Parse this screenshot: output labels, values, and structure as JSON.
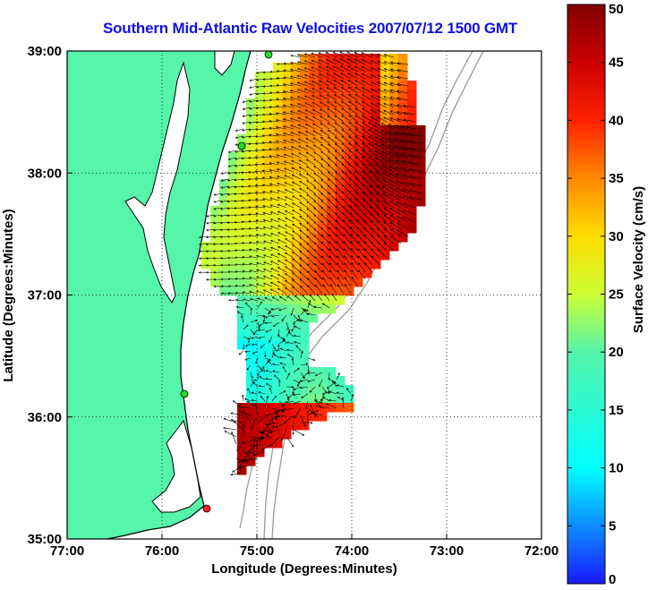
{
  "title": "Southern Mid-Atlantic Raw Velocities 2007/07/12 1500 GMT",
  "map": {
    "xlabel": "Longitude (Degrees:Minutes)",
    "ylabel": "Latitude (Degrees:Minutes)",
    "lon_range": [
      -77,
      -72
    ],
    "lat_range": [
      35,
      39
    ],
    "x_ticks": [
      {
        "value": -77,
        "label": "77:00"
      },
      {
        "value": -76,
        "label": "76:00"
      },
      {
        "value": -75,
        "label": "75:00"
      },
      {
        "value": -74,
        "label": "74:00"
      },
      {
        "value": -73,
        "label": "73:00"
      },
      {
        "value": -72,
        "label": "72:00"
      }
    ],
    "y_ticks": [
      {
        "value": 35,
        "label": "35:00"
      },
      {
        "value": 36,
        "label": "36:00"
      },
      {
        "value": 37,
        "label": "37:00"
      },
      {
        "value": 38,
        "label": "38:00"
      },
      {
        "value": 39,
        "label": "39:00"
      }
    ],
    "grid": "dotted",
    "land_color": "#55f5aa",
    "station_color_green": "#22dd22",
    "station_color_red": "#ff2222"
  },
  "colorbar": {
    "label": "Surface Velocity (cm/s)",
    "range": [
      0,
      50
    ],
    "units": "cm/s",
    "ticks": [
      {
        "value": 0,
        "label": "0"
      },
      {
        "value": 5,
        "label": "5"
      },
      {
        "value": 10,
        "label": "10"
      },
      {
        "value": 15,
        "label": "15"
      },
      {
        "value": 20,
        "label": "20"
      },
      {
        "value": 25,
        "label": "25"
      },
      {
        "value": 30,
        "label": "30"
      },
      {
        "value": 35,
        "label": "35"
      },
      {
        "value": 40,
        "label": "40"
      },
      {
        "value": 45,
        "label": "45"
      },
      {
        "value": 50,
        "label": "50"
      }
    ]
  }
}
